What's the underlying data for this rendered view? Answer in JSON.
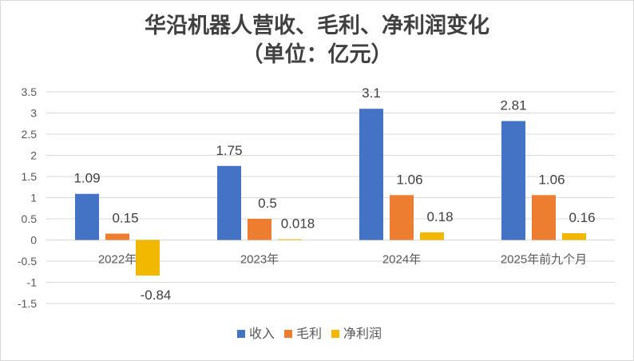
{
  "chart_data": {
    "type": "bar",
    "title": "华沿机器人营收、毛利、净利润变化",
    "subtitle": "（单位：亿元）",
    "categories": [
      "2022年",
      "2023年",
      "2024年",
      "2025年前九个月"
    ],
    "series": [
      {
        "name": "收入",
        "color": "#4472C4",
        "values": [
          1.09,
          1.75,
          3.1,
          2.81
        ],
        "labels": [
          "1.09",
          "1.75",
          "3.1",
          "2.81"
        ]
      },
      {
        "name": "毛利",
        "color": "#ED7D31",
        "values": [
          0.15,
          0.5,
          1.06,
          1.06
        ],
        "labels": [
          "0.15",
          "0.5",
          "1.06",
          "1.06"
        ]
      },
      {
        "name": "净利润",
        "color": "#F2B800",
        "values": [
          -0.84,
          0.018,
          0.18,
          0.16
        ],
        "labels": [
          "-0.84",
          "0.018",
          "0.18",
          "0.16"
        ]
      }
    ],
    "ylim": [
      -1.5,
      3.5
    ],
    "yticks": [
      "3.5",
      "3",
      "2.5",
      "2",
      "1.5",
      "1",
      "0.5",
      "0",
      "-0.5",
      "-1",
      "-1.5"
    ],
    "grid": true,
    "legend": "bottom"
  }
}
